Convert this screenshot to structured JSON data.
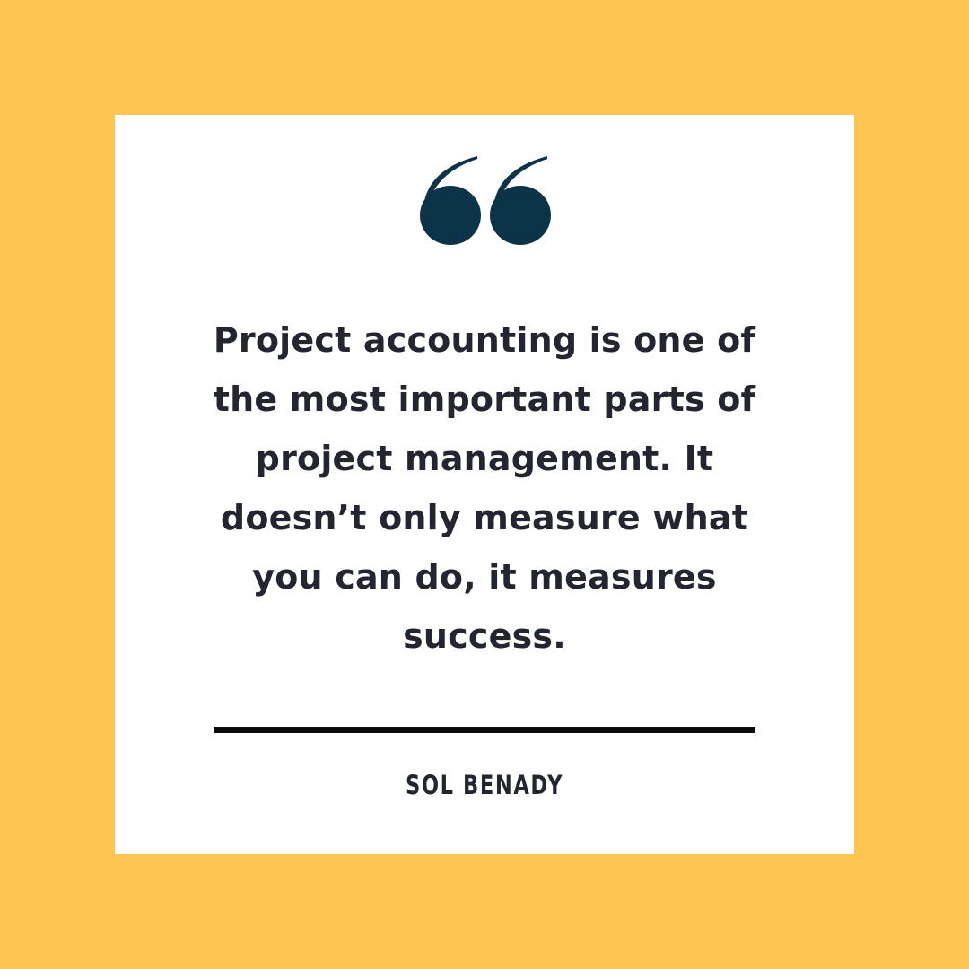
{
  "colors": {
    "background": "#FEC551",
    "card": "#FFFFFF",
    "quote_mark": "#0C3448",
    "text": "#232530",
    "divider": "#0B0B0B"
  },
  "quote": {
    "icon": "quote-mark-icon",
    "text": "Project accounting is one of\nthe most important parts of\nproject management. It\ndoesn’t only measure what\nyou can do, it measures\nsuccess."
  },
  "author": {
    "name": "SOL BENADY"
  }
}
